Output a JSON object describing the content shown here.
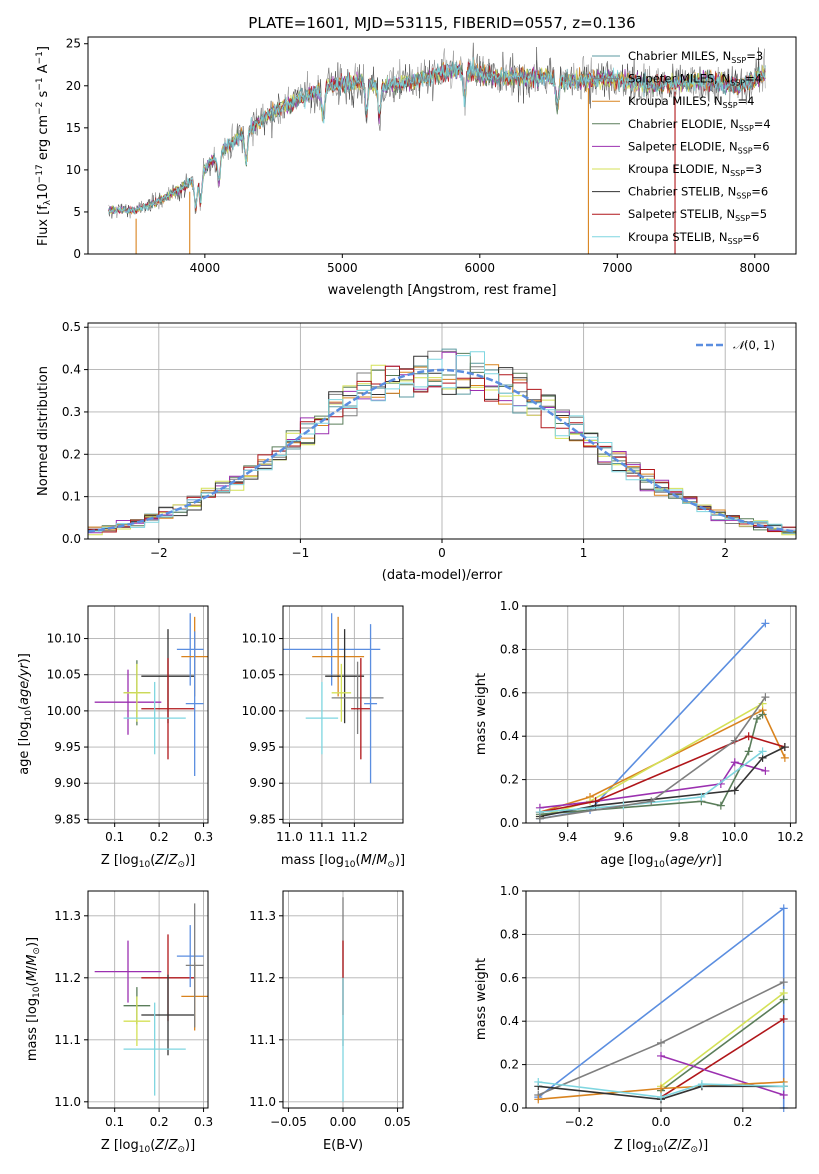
{
  "colors": {
    "chabrier_miles": "#5b9aa0",
    "salpeter_miles": "#7f7f7f",
    "kroupa_miles": "#d9831e",
    "chabrier_elodie": "#5a7d5a",
    "salpeter_elodie": "#9b30b0",
    "kroupa_elodie": "#d4e157",
    "chabrier_stelib": "#333333",
    "salpeter_stelib": "#b0161a",
    "kroupa_stelib": "#7fd6e0",
    "normal": "#5b8ee0",
    "grid": "#b0b0b0"
  },
  "chart_data": [
    {
      "id": "spectrum",
      "type": "line",
      "title": "PLATE=1601, MJD=53115, FIBERID=0557, z=0.136",
      "xlabel": "wavelength [Angstrom, rest frame]",
      "ylabel": "Flux [f$_\\lambda$10$^{-17}$ erg cm$^{-2}$ s$^{-1}$ A$^{-1}$]",
      "xlim": [
        3150,
        8300
      ],
      "ylim": [
        0,
        25.8
      ],
      "xticks": [
        4000,
        5000,
        6000,
        7000,
        8000
      ],
      "yticks": [
        0,
        5,
        10,
        15,
        20,
        25
      ],
      "grid": false,
      "legend_position": "right",
      "legend": [
        "Chabrier MILES, N$_{SSP}$=3",
        "Salpeter MILES, N$_{SSP}$=4",
        "Kroupa MILES, N$_{SSP}$=4",
        "Chabrier ELODIE, N$_{SSP}$=4",
        "Salpeter ELODIE, N$_{SSP}$=6",
        "Kroupa ELODIE, N$_{SSP}$=3",
        "Chabrier STELIB, N$_{SSP}$=6",
        "Salpeter STELIB, N$_{SSP}$=5",
        "Kroupa STELIB, N$_{SSP}$=6"
      ],
      "continuum": {
        "x": [
          3300,
          3500,
          3700,
          3900,
          4100,
          4300,
          4500,
          4700,
          4900,
          5100,
          5300,
          5500,
          5700,
          5900,
          6100,
          6300,
          6500,
          6700,
          6900,
          7100,
          7300,
          7500,
          7700,
          7900,
          8080
        ],
        "y": [
          5.2,
          5.2,
          6.6,
          8.5,
          12,
          14.5,
          17,
          18.5,
          20,
          20.5,
          20,
          20.5,
          21.5,
          22,
          21,
          21,
          21,
          20.5,
          21,
          20.5,
          20,
          20.5,
          20.5,
          20,
          21.5
        ]
      }
    },
    {
      "id": "residuals",
      "type": "histogram",
      "xlabel": "(data-model)/error",
      "ylabel": "Normed distribution",
      "xlim": [
        -2.5,
        2.5
      ],
      "ylim": [
        0,
        0.51
      ],
      "xticks": [
        -2,
        -1,
        0,
        1,
        2
      ],
      "yticks": [
        0.0,
        0.1,
        0.2,
        0.3,
        0.4,
        0.5
      ],
      "grid": true,
      "legend_position": "top-right",
      "legend": [
        "$\\mathcal{N}(0,1)$"
      ],
      "bin_width": 0.1
    },
    {
      "id": "age_vs_Z",
      "type": "scatter",
      "xlabel": "Z [log$_{10}$($Z/Z_\\odot$)]",
      "ylabel": "age  [log$_{10}$($age/yr$)]",
      "xlim": [
        0.04,
        0.31
      ],
      "ylim": [
        9.845,
        10.145
      ],
      "xticks": [
        0.1,
        0.2,
        0.3
      ],
      "yticks": [
        9.85,
        9.9,
        9.95,
        10.0,
        10.05,
        10.1
      ],
      "points": [
        {
          "x": 0.15,
          "y": 10.025,
          "xerr": 0.03,
          "yerr": 0.045,
          "c": "chabrier_elodie"
        },
        {
          "x": 0.13,
          "y": 10.012,
          "xerr": 0.075,
          "yerr": 0.045,
          "c": "salpeter_elodie"
        },
        {
          "x": 0.15,
          "y": 10.025,
          "xerr": 0.03,
          "yerr": 0.04,
          "c": "kroupa_elodie"
        },
        {
          "x": 0.22,
          "y": 10.048,
          "xerr": 0.06,
          "yerr": 0.065,
          "c": "chabrier_stelib"
        },
        {
          "x": 0.22,
          "y": 10.003,
          "xerr": 0.06,
          "yerr": 0.07,
          "c": "salpeter_stelib"
        },
        {
          "x": 0.19,
          "y": 9.99,
          "xerr": 0.07,
          "yerr": 0.05,
          "c": "kroupa_stelib"
        },
        {
          "x": 0.27,
          "y": 10.085,
          "xerr": 0.03,
          "yerr": 0.05,
          "c": "normal"
        },
        {
          "x": 0.28,
          "y": 10.075,
          "xerr": 0.03,
          "yerr": 0.055,
          "c": "kroupa_miles"
        },
        {
          "x": 0.28,
          "y": 10.01,
          "xerr": 0.02,
          "yerr": 0.1,
          "c": "normal"
        }
      ]
    },
    {
      "id": "age_vs_mass",
      "type": "scatter",
      "xlabel": "mass [log$_{10}$($M/M_\\odot$)]",
      "xlim": [
        10.98,
        11.35
      ],
      "ylim": [
        9.845,
        10.145
      ],
      "xticks": [
        11.0,
        11.1,
        11.2
      ],
      "yticks": [
        9.85,
        9.9,
        9.95,
        10.0,
        10.05,
        10.1
      ]
    },
    {
      "id": "weights_vs_age",
      "type": "line",
      "xlabel": "age  [log$_{10}$($age/yr$)]",
      "ylabel": "mass weight",
      "xlim": [
        9.25,
        10.22
      ],
      "ylim": [
        0,
        1
      ],
      "xticks": [
        9.4,
        9.6,
        9.8,
        10.0,
        10.2
      ],
      "yticks": [
        0.0,
        0.2,
        0.4,
        0.6,
        0.8,
        1.0
      ],
      "grid": true,
      "series": [
        {
          "c": "normal",
          "x": [
            9.3,
            9.48,
            10.11
          ],
          "y": [
            0.02,
            0.06,
            0.92
          ]
        },
        {
          "c": "kroupa_miles",
          "x": [
            9.3,
            9.48,
            10.1,
            10.18
          ],
          "y": [
            0.05,
            0.12,
            0.52,
            0.3
          ]
        },
        {
          "c": "kroupa_elodie",
          "x": [
            9.3,
            9.48,
            10.1
          ],
          "y": [
            0.03,
            0.1,
            0.55
          ]
        },
        {
          "c": "chabrier_elodie",
          "x": [
            9.3,
            9.88,
            9.95,
            10.05,
            10.08,
            10.1
          ],
          "y": [
            0.04,
            0.1,
            0.08,
            0.33,
            0.48,
            0.5
          ]
        },
        {
          "c": "salpeter_elodie",
          "x": [
            9.3,
            9.5,
            9.95,
            10.0,
            10.11
          ],
          "y": [
            0.07,
            0.1,
            0.18,
            0.28,
            0.24
          ]
        },
        {
          "c": "salpeter_stelib",
          "x": [
            9.3,
            9.5,
            10.05,
            10.18
          ],
          "y": [
            0.05,
            0.1,
            0.4,
            0.35
          ]
        },
        {
          "c": "chabrier_stelib",
          "x": [
            9.3,
            9.5,
            10.0,
            10.1,
            10.18
          ],
          "y": [
            0.03,
            0.08,
            0.15,
            0.3,
            0.35
          ]
        },
        {
          "c": "kroupa_stelib",
          "x": [
            9.3,
            9.6,
            9.88,
            10.1
          ],
          "y": [
            0.05,
            0.08,
            0.12,
            0.33
          ]
        },
        {
          "c": "salpeter_miles",
          "x": [
            9.3,
            9.7,
            10.0,
            10.11
          ],
          "y": [
            0.02,
            0.1,
            0.38,
            0.58
          ]
        }
      ]
    },
    {
      "id": "mass_vs_Z",
      "type": "scatter",
      "xlabel": "Z [log$_{10}$($Z/Z_\\odot$)]",
      "ylabel": "mass [log$_{10}$($M/M_\\odot$)]",
      "xlim": [
        0.04,
        0.31
      ],
      "ylim": [
        10.99,
        11.34
      ],
      "xticks": [
        0.1,
        0.2,
        0.3
      ],
      "yticks": [
        11.0,
        11.1,
        11.2,
        11.3
      ]
    },
    {
      "id": "mass_vs_ebv",
      "type": "scatter",
      "xlabel": "E(B-V)",
      "xlim": [
        -0.055,
        0.055
      ],
      "ylim": [
        10.99,
        11.34
      ],
      "xticks": [
        -0.05,
        0.0,
        0.05
      ],
      "yticks": [
        11.0,
        11.1,
        11.2,
        11.3
      ]
    },
    {
      "id": "weights_vs_Z",
      "type": "line",
      "xlabel": "Z [log$_{10}$($Z/Z_\\odot$)]",
      "ylabel": "mass weight",
      "xlim": [
        -0.33,
        0.33
      ],
      "ylim": [
        0,
        1
      ],
      "xticks": [
        -0.2,
        0.0,
        0.2
      ],
      "yticks": [
        0.0,
        0.2,
        0.4,
        0.6,
        0.8,
        1.0
      ],
      "grid": true,
      "series": [
        {
          "c": "normal",
          "x": [
            -0.3,
            0.3,
            0.3
          ],
          "y": [
            0.05,
            0.92,
            0.0
          ]
        },
        {
          "c": "salpeter_miles",
          "x": [
            -0.3,
            0.0,
            0.3
          ],
          "y": [
            0.06,
            0.3,
            0.58
          ]
        },
        {
          "c": "kroupa_elodie",
          "x": [
            0.0,
            0.3
          ],
          "y": [
            0.1,
            0.53
          ]
        },
        {
          "c": "chabrier_elodie",
          "x": [
            0.0,
            0.3
          ],
          "y": [
            0.08,
            0.5
          ]
        },
        {
          "c": "salpeter_stelib",
          "x": [
            0.0,
            0.3
          ],
          "y": [
            0.05,
            0.41
          ]
        },
        {
          "c": "salpeter_elodie",
          "x": [
            0.0,
            0.3
          ],
          "y": [
            0.24,
            0.06
          ]
        },
        {
          "c": "kroupa_miles",
          "x": [
            -0.3,
            0.0,
            0.3
          ],
          "y": [
            0.04,
            0.09,
            0.12
          ]
        },
        {
          "c": "chabrier_stelib",
          "x": [
            -0.3,
            0.0,
            0.1,
            0.3
          ],
          "y": [
            0.1,
            0.04,
            0.1,
            0.1
          ]
        },
        {
          "c": "kroupa_stelib",
          "x": [
            -0.3,
            0.0,
            0.1,
            0.3
          ],
          "y": [
            0.12,
            0.05,
            0.11,
            0.1
          ]
        }
      ]
    }
  ]
}
